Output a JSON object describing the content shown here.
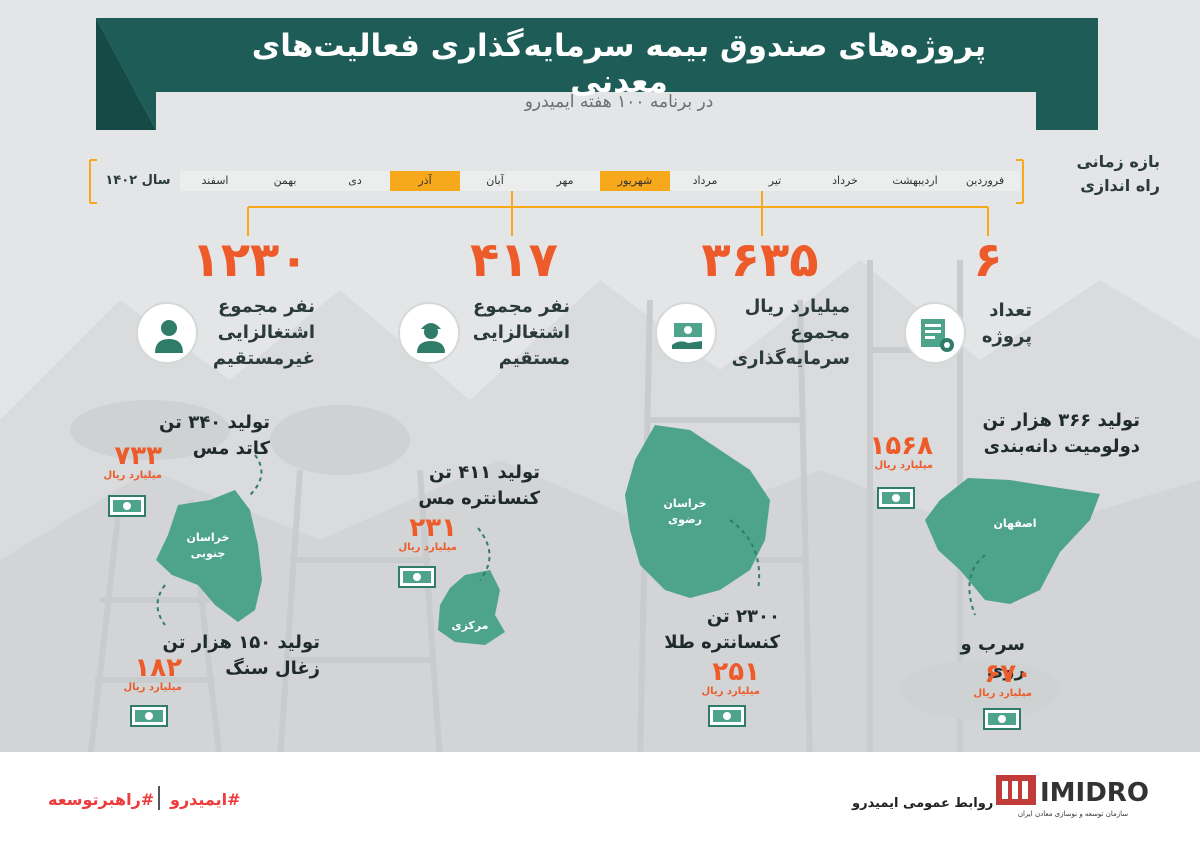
{
  "header": {
    "title": "پروژه‌های صندوق بیمه سرمایه‌گذاری فعالیت‌های معدنی",
    "subtitle": "در برنامه ۱۰۰ هفته ایمیدرو"
  },
  "timeline": {
    "label_line1": "بازه زمانی",
    "label_line2": "راه اندازی",
    "year": "سال ۱۴۰۲",
    "months": [
      "فروردین",
      "اردیبهشت",
      "خرداد",
      "تیر",
      "مرداد",
      "شهریور",
      "مهر",
      "آبان",
      "آذر",
      "دی",
      "بهمن",
      "اسفند"
    ],
    "active_months": [
      "شهریور",
      "آذر"
    ]
  },
  "stats": [
    {
      "id": "projects",
      "value": "۶",
      "label_lines": [
        "تعداد",
        "پروژه"
      ],
      "icon": "project-gear-icon"
    },
    {
      "id": "investment",
      "value": "۳۶۳۵",
      "label_lines": [
        "میلیارد ریال",
        "مجموع",
        "سرمایه‌گذاری"
      ],
      "icon": "money-hand-icon"
    },
    {
      "id": "direct",
      "value": "۴۱۷",
      "label_lines": [
        "نفر مجموع",
        "اشتغالزایی",
        "مستقیم"
      ],
      "icon": "worker-icon"
    },
    {
      "id": "indirect",
      "value": "۱۲۳۰",
      "label_lines": [
        "نفر مجموع",
        "اشتغالزایی",
        "غیرمستقیم"
      ],
      "icon": "person-icon"
    }
  ],
  "projects": [
    {
      "id": "dolomite",
      "title_lines": [
        "تولید ۳۶۶ هزار تن",
        "دولومیت دانه‌بندی"
      ],
      "amount": "۱۵۶۸",
      "unit": "میلیارد ریال"
    },
    {
      "id": "lead-zinc",
      "title_lines": [
        "سرب و روی"
      ],
      "amount": "۶۷۰",
      "unit": "میلیارد ریال"
    },
    {
      "id": "gold",
      "title_lines": [
        "۲۳۰۰ تن",
        "کنسانتره طلا"
      ],
      "amount": "۲۵۱",
      "unit": "میلیارد ریال"
    },
    {
      "id": "copper-conc",
      "title_lines": [
        "تولید ۴۱۱ تن",
        "کنسانتره مس"
      ],
      "amount": "۲۳۱",
      "unit": "میلیارد ریال"
    },
    {
      "id": "cathode",
      "title_lines": [
        "تولید ۳۴۰ تن",
        "کاتد مس"
      ],
      "amount": "۷۳۳",
      "unit": "میلیارد ریال"
    },
    {
      "id": "coal",
      "title_lines": [
        "تولید ۱۵۰ هزار تن",
        "زغال سنگ"
      ],
      "amount": "۱۸۲",
      "unit": "میلیارد ریال"
    }
  ],
  "provinces": {
    "isfahan": "اصفهان",
    "khorasan_razavi_line1": "خراسان",
    "khorasan_razavi_line2": "رضوی",
    "markazi": "مرکزی",
    "khorasan_south_line1": "خراسان",
    "khorasan_south_line2": "جنوبی"
  },
  "footer": {
    "hashtag1": "#راهبرتوسعه",
    "hashtag2": "#ایمیدرو",
    "pr": "روابط عمومی ایمیدرو",
    "logo_text": "IMIDRO",
    "logo_sub": "سازمان توسعه و نوسازی معادن ایران"
  },
  "colors": {
    "teal": "#1d5c57",
    "map": "#4ea48a",
    "orange": "#ee5b2a",
    "accent": "#f7a81b"
  }
}
